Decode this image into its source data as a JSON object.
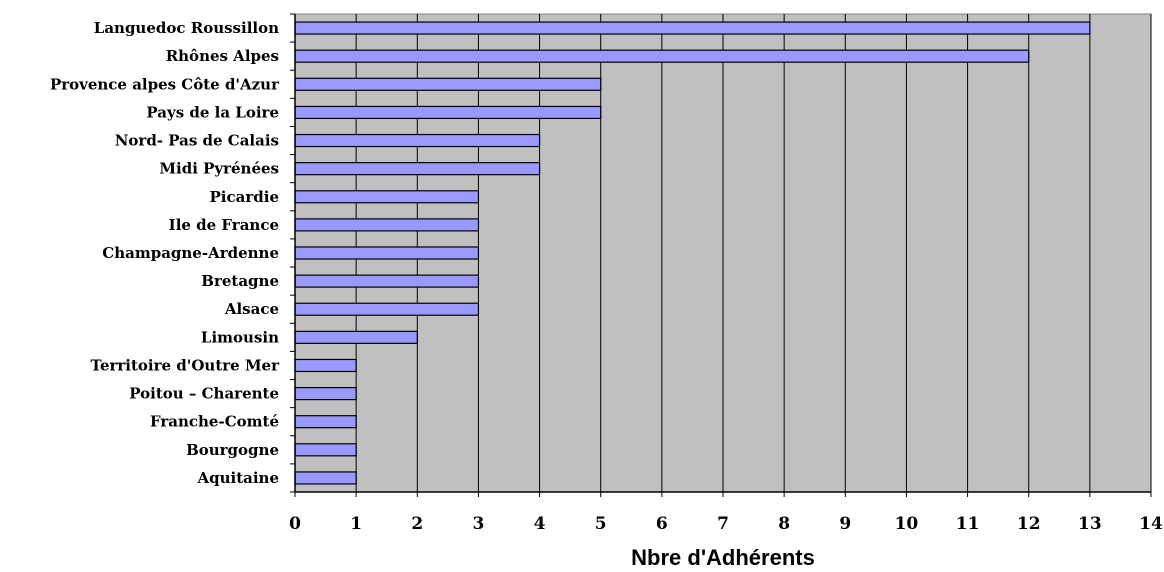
{
  "chart_data": {
    "type": "bar",
    "orientation": "horizontal",
    "categories": [
      "Languedoc Roussillon",
      "Rhônes Alpes",
      "Provence alpes Côte d'Azur",
      "Pays de la Loire",
      "Nord- Pas de Calais",
      "Midi Pyrénées",
      "Picardie",
      "Ile de France",
      "Champagne-Ardenne",
      "Bretagne",
      "Alsace",
      "Limousin",
      "Territoire d'Outre Mer",
      "Poitou – Charente",
      "Franche-Comté",
      "Bourgogne",
      "Aquitaine"
    ],
    "values": [
      13,
      12,
      5,
      5,
      4,
      4,
      3,
      3,
      3,
      3,
      3,
      2,
      1,
      1,
      1,
      1,
      1
    ],
    "xlabel": "Nbre d'Adhérents",
    "ylabel": "",
    "xlim": [
      0,
      14
    ],
    "xticks": [
      "0",
      "1",
      "2",
      "3",
      "4",
      "5",
      "6",
      "7",
      "8",
      "9",
      "10",
      "11",
      "12",
      "13",
      "14"
    ],
    "grid": "vertical",
    "legend": "none",
    "colors": {
      "bar_fill": "#9999ff",
      "bar_stroke": "#000000",
      "plot_background": "#c0c0c0",
      "gridline": "#000000"
    }
  }
}
